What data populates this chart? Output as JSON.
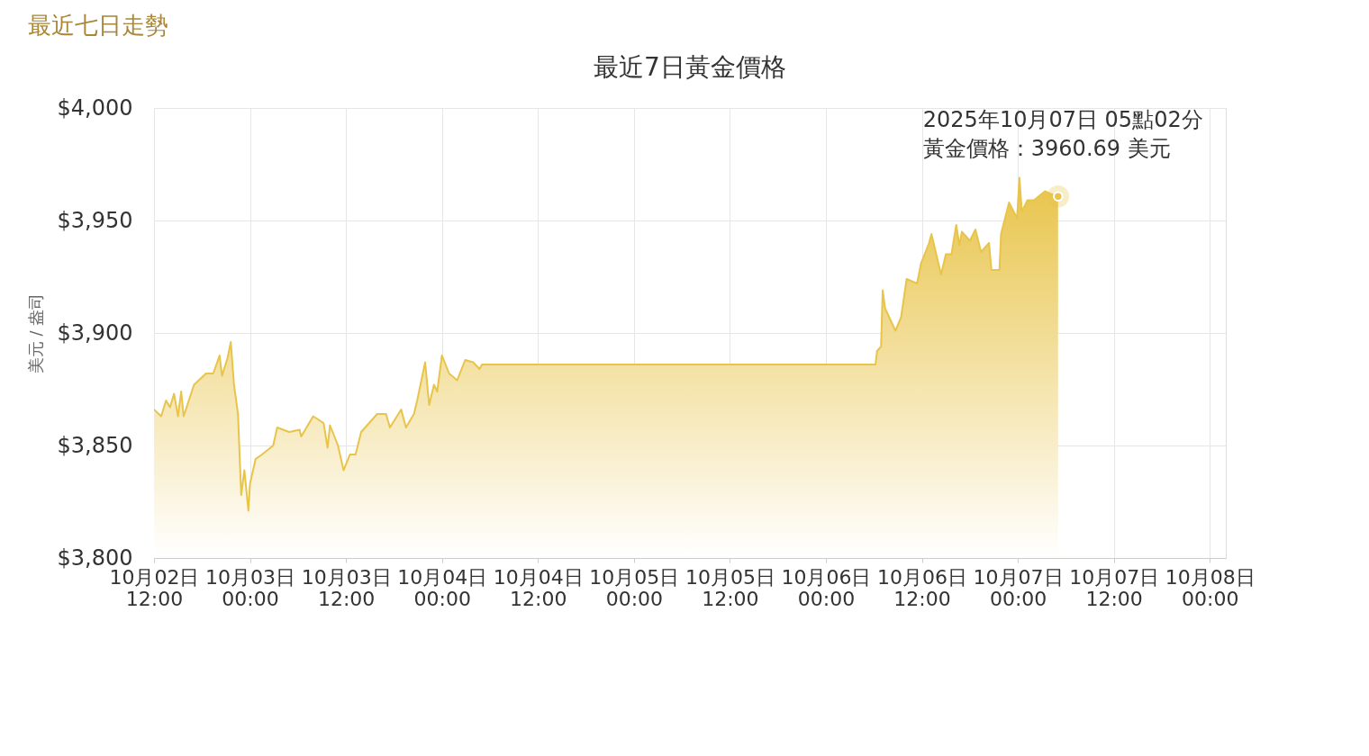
{
  "chart_data": {
    "type": "area",
    "title": "最近7日黃金價格",
    "ylabel": "美元 / 盎司",
    "annotations": [
      "最近七日走勢",
      {
        "text": "2025年10月07日 05點02分",
        "x": "2025-10-07T05:02",
        "y": 3960.69
      },
      {
        "text": "黃金價格：3960.69 美元",
        "x": "2025-10-07T05:02",
        "y": 3960.69
      }
    ],
    "x": [
      "2025-10-02T12:00",
      "2025-10-02T12:54",
      "2025-10-02T13:30",
      "2025-10-02T14:00",
      "2025-10-02T14:30",
      "2025-10-02T15:00",
      "2025-10-02T15:24",
      "2025-10-02T15:42",
      "2025-10-02T17:00",
      "2025-10-02T18:30",
      "2025-10-02T19:24",
      "2025-10-02T20:12",
      "2025-10-02T20:30",
      "2025-10-02T21:12",
      "2025-10-02T21:36",
      "2025-10-02T22:00",
      "2025-10-02T22:30",
      "2025-10-02T22:54",
      "2025-10-02T23:18",
      "2025-10-02T23:48",
      "2025-10-03T00:00",
      "2025-10-03T00:42",
      "2025-10-03T01:30",
      "2025-10-03T02:54",
      "2025-10-03T03:24",
      "2025-10-03T04:54",
      "2025-10-03T06:12",
      "2025-10-03T06:24",
      "2025-10-03T07:54",
      "2025-10-03T09:12",
      "2025-10-03T09:42",
      "2025-10-03T10:00",
      "2025-10-03T11:00",
      "2025-10-03T11:42",
      "2025-10-03T12:30",
      "2025-10-03T13:12",
      "2025-10-03T13:54",
      "2025-10-03T14:54",
      "2025-10-03T15:54",
      "2025-10-03T17:00",
      "2025-10-03T17:30",
      "2025-10-03T18:54",
      "2025-10-03T19:30",
      "2025-10-03T20:30",
      "2025-10-03T20:54",
      "2025-10-03T21:54",
      "2025-10-03T22:24",
      "2025-10-03T23:00",
      "2025-10-03T23:24",
      "2025-10-04T00:00",
      "2025-10-04T00:54",
      "2025-10-04T01:54",
      "2025-10-04T02:54",
      "2025-10-04T03:54",
      "2025-10-04T04:42",
      "2025-10-04T05:00",
      "2025-10-06T06:12",
      "2025-10-06T06:24",
      "2025-10-06T06:54",
      "2025-10-06T07:06",
      "2025-10-06T07:24",
      "2025-10-06T08:42",
      "2025-10-06T09:24",
      "2025-10-06T10:06",
      "2025-10-06T11:24",
      "2025-10-06T11:54",
      "2025-10-06T12:54",
      "2025-10-06T13:12",
      "2025-10-06T14:24",
      "2025-10-06T15:00",
      "2025-10-06T15:42",
      "2025-10-06T16:18",
      "2025-10-06T16:42",
      "2025-10-06T17:00",
      "2025-10-06T18:00",
      "2025-10-06T18:42",
      "2025-10-06T19:24",
      "2025-10-06T20:24",
      "2025-10-06T20:42",
      "2025-10-06T21:42",
      "2025-10-06T21:54",
      "2025-10-06T22:54",
      "2025-10-06T23:54",
      "2025-10-07T00:12",
      "2025-10-07T00:30",
      "2025-10-07T01:12",
      "2025-10-07T02:00",
      "2025-10-07T03:24",
      "2025-10-07T04:00",
      "2025-10-07T05:02"
    ],
    "series": [
      {
        "color": "#e8c44a",
        "values": [
          3866,
          3863,
          3870,
          3867,
          3873,
          3863,
          3874,
          3863,
          3877,
          3882,
          3882,
          3890,
          3881,
          3889,
          3896,
          3877,
          3864,
          3828,
          3839,
          3821,
          3833,
          3844,
          3846,
          3850,
          3858,
          3856,
          3857,
          3854,
          3863,
          3860,
          3849,
          3859,
          3850,
          3839,
          3846,
          3846,
          3856,
          3860,
          3864,
          3864,
          3858,
          3866,
          3858,
          3864,
          3870,
          3887,
          3868,
          3877,
          3874,
          3890,
          3882,
          3879,
          3888,
          3887,
          3884,
          3886,
          3886,
          3892,
          3894,
          3919,
          3911,
          3901,
          3907,
          3924,
          3922,
          3931,
          3940,
          3944,
          3926,
          3935,
          3935,
          3948,
          3939,
          3945,
          3941,
          3946,
          3936,
          3940,
          3928,
          3928,
          3944,
          3958,
          3951,
          3969,
          3954,
          3959,
          3959,
          3963,
          3962,
          3960.69
        ]
      }
    ],
    "xlim": [
      "2025-10-02T12:00",
      "2025-10-08T02:00"
    ],
    "xticks": [
      {
        "value": "2025-10-02T12:00",
        "label": "10月02日\n12:00"
      },
      {
        "value": "2025-10-03T00:00",
        "label": "10月03日\n00:00"
      },
      {
        "value": "2025-10-03T12:00",
        "label": "10月03日\n12:00"
      },
      {
        "value": "2025-10-04T00:00",
        "label": "10月04日\n00:00"
      },
      {
        "value": "2025-10-04T12:00",
        "label": "10月04日\n12:00"
      },
      {
        "value": "2025-10-05T00:00",
        "label": "10月05日\n00:00"
      },
      {
        "value": "2025-10-05T12:00",
        "label": "10月05日\n12:00"
      },
      {
        "value": "2025-10-06T00:00",
        "label": "10月06日\n00:00"
      },
      {
        "value": "2025-10-06T12:00",
        "label": "10月06日\n12:00"
      },
      {
        "value": "2025-10-07T00:00",
        "label": "10月07日\n00:00"
      },
      {
        "value": "2025-10-07T12:00",
        "label": "10月07日\n12:00"
      },
      {
        "value": "2025-10-08T00:00",
        "label": "10月08日\n00:00"
      }
    ],
    "ylim": [
      3800,
      4000
    ],
    "yticks": [
      {
        "value": 3800,
        "label": "$3,800"
      },
      {
        "value": 3850,
        "label": "$3,850"
      },
      {
        "value": 3900,
        "label": "$3,900"
      },
      {
        "value": 3950,
        "label": "$3,950"
      },
      {
        "value": 4000,
        "label": "$4,000"
      }
    ],
    "grid": true,
    "marker": "none",
    "line_style": "solid"
  }
}
